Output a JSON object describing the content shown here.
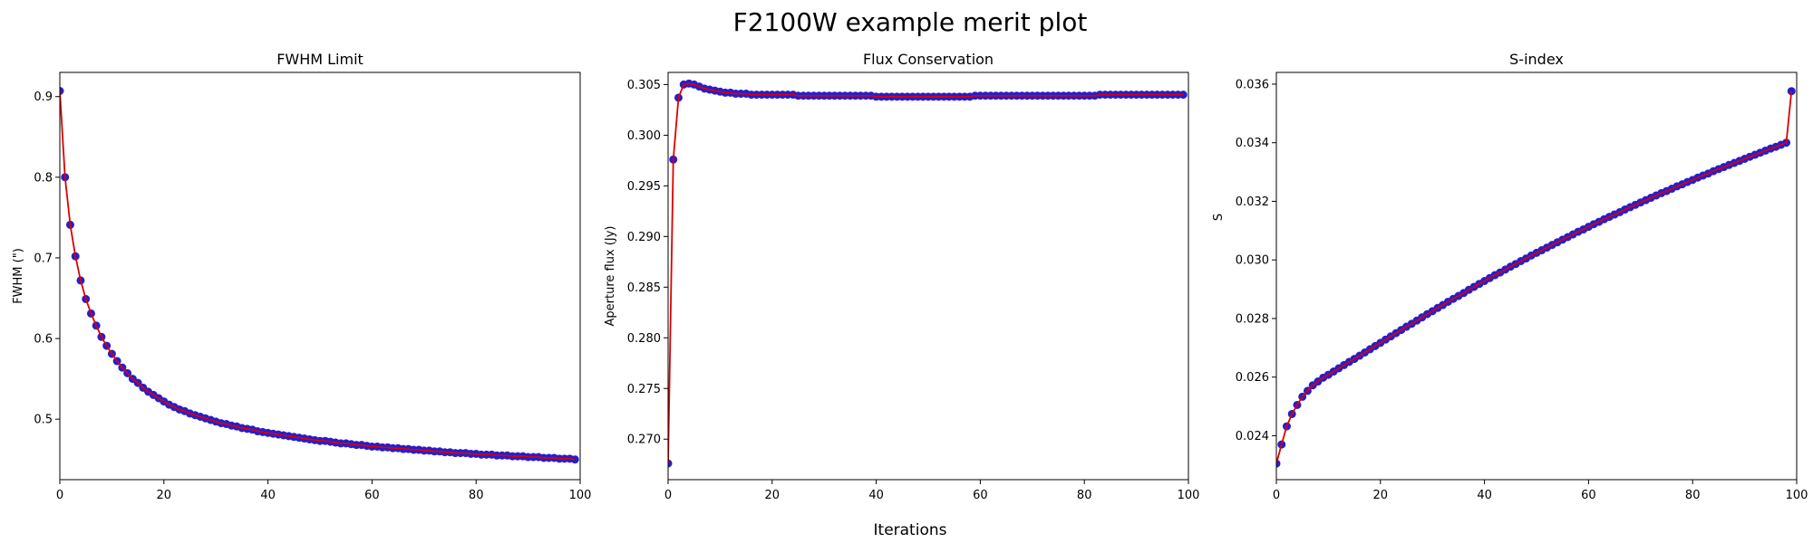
{
  "figure": {
    "suptitle": "F2100W example merit plot",
    "supxlabel": "Iterations"
  },
  "colors": {
    "line": "#dd0000",
    "marker": "#1f1fd6",
    "marker_edge": "#3a1fb0"
  },
  "chart_data": [
    {
      "type": "line",
      "title": "FWHM Limit",
      "xlabel": "",
      "ylabel": "FWHM (\")",
      "xlim": [
        0,
        100
      ],
      "ylim": [
        0.425,
        0.93
      ],
      "xticks": [
        0,
        20,
        40,
        60,
        80,
        100
      ],
      "yticks": [
        0.5,
        0.6,
        0.7,
        0.8,
        0.9
      ],
      "ytick_labels": [
        "0.5",
        "0.6",
        "0.7",
        "0.8",
        "0.9"
      ],
      "grid": false,
      "series": [
        {
          "x_start": 0,
          "x_step": 1,
          "values": [
            0.907,
            0.8,
            0.741,
            0.702,
            0.672,
            0.649,
            0.631,
            0.616,
            0.602,
            0.591,
            0.581,
            0.572,
            0.564,
            0.557,
            0.55,
            0.545,
            0.539,
            0.534,
            0.53,
            0.526,
            0.522,
            0.518,
            0.515,
            0.512,
            0.51,
            0.507,
            0.505,
            0.503,
            0.501,
            0.499,
            0.497,
            0.495,
            0.494,
            0.492,
            0.491,
            0.489,
            0.488,
            0.487,
            0.485,
            0.484,
            0.483,
            0.482,
            0.481,
            0.48,
            0.479,
            0.478,
            0.477,
            0.476,
            0.475,
            0.474,
            0.473,
            0.473,
            0.472,
            0.471,
            0.47,
            0.47,
            0.469,
            0.468,
            0.468,
            0.467,
            0.466,
            0.466,
            0.465,
            0.465,
            0.464,
            0.464,
            0.463,
            0.463,
            0.462,
            0.462,
            0.461,
            0.461,
            0.46,
            0.46,
            0.459,
            0.459,
            0.458,
            0.458,
            0.458,
            0.457,
            0.457,
            0.456,
            0.456,
            0.456,
            0.455,
            0.455,
            0.455,
            0.454,
            0.454,
            0.454,
            0.453,
            0.453,
            0.453,
            0.452,
            0.452,
            0.452,
            0.451,
            0.451,
            0.451,
            0.45
          ]
        }
      ]
    },
    {
      "type": "line",
      "title": "Flux Conservation",
      "xlabel": "",
      "ylabel": "Aperture flux (Jy)",
      "xlim": [
        0,
        100
      ],
      "ylim": [
        0.266,
        0.3062
      ],
      "xticks": [
        0,
        20,
        40,
        60,
        80,
        100
      ],
      "yticks": [
        0.27,
        0.275,
        0.28,
        0.285,
        0.29,
        0.295,
        0.3,
        0.305
      ],
      "ytick_labels": [
        "0.270",
        "0.275",
        "0.280",
        "0.285",
        "0.290",
        "0.295",
        "0.300",
        "0.305"
      ],
      "grid": false,
      "series": [
        {
          "x_start": 0,
          "x_step": 1,
          "values": [
            0.2676,
            0.2976,
            0.3037,
            0.305,
            0.3051,
            0.305,
            0.3048,
            0.3046,
            0.3045,
            0.3044,
            0.3043,
            0.3042,
            0.3042,
            0.3041,
            0.3041,
            0.3041,
            0.304,
            0.304,
            0.304,
            0.304,
            0.304,
            0.304,
            0.304,
            0.304,
            0.304,
            0.3039,
            0.3039,
            0.3039,
            0.3039,
            0.3039,
            0.3039,
            0.3039,
            0.3039,
            0.3039,
            0.3039,
            0.3039,
            0.3039,
            0.3039,
            0.3039,
            0.3039,
            0.3038,
            0.3038,
            0.3038,
            0.3038,
            0.3038,
            0.3038,
            0.3038,
            0.3038,
            0.3038,
            0.3038,
            0.3038,
            0.3038,
            0.3038,
            0.3038,
            0.3038,
            0.3038,
            0.3038,
            0.3038,
            0.3038,
            0.3039,
            0.3039,
            0.3039,
            0.3039,
            0.3039,
            0.3039,
            0.3039,
            0.3039,
            0.3039,
            0.3039,
            0.3039,
            0.3039,
            0.3039,
            0.3039,
            0.3039,
            0.3039,
            0.3039,
            0.3039,
            0.3039,
            0.3039,
            0.3039,
            0.3039,
            0.3039,
            0.3039,
            0.304,
            0.304,
            0.304,
            0.304,
            0.304,
            0.304,
            0.304,
            0.304,
            0.304,
            0.304,
            0.304,
            0.304,
            0.304,
            0.304,
            0.304,
            0.304,
            0.304
          ]
        }
      ]
    },
    {
      "type": "line",
      "title": "S-index",
      "xlabel": "",
      "ylabel": "S",
      "xlim": [
        0,
        100
      ],
      "ylim": [
        0.0225,
        0.0364
      ],
      "xticks": [
        0,
        20,
        40,
        60,
        80,
        100
      ],
      "yticks": [
        0.024,
        0.026,
        0.028,
        0.03,
        0.032,
        0.034,
        0.036
      ],
      "ytick_labels": [
        "0.024",
        "0.026",
        "0.028",
        "0.030",
        "0.032",
        "0.034",
        "0.036"
      ],
      "grid": false,
      "series": [
        {
          "x_start": 0,
          "x_step": 1,
          "values": [
            0.02305,
            0.0237,
            0.02432,
            0.02474,
            0.02505,
            0.02533,
            0.02553,
            0.02572,
            0.02585,
            0.02598,
            0.02608,
            0.02619,
            0.0263,
            0.02641,
            0.02652,
            0.02662,
            0.02673,
            0.02684,
            0.02695,
            0.02706,
            0.02717,
            0.02728,
            0.02739,
            0.0275,
            0.02761,
            0.02772,
            0.02782,
            0.02793,
            0.02804,
            0.02815,
            0.02825,
            0.02836,
            0.02846,
            0.02857,
            0.02867,
            0.02877,
            0.02887,
            0.02898,
            0.02908,
            0.02918,
            0.02928,
            0.02938,
            0.02948,
            0.02957,
            0.02967,
            0.02977,
            0.02986,
            0.02996,
            0.03005,
            0.03015,
            0.03024,
            0.03033,
            0.03042,
            0.03051,
            0.0306,
            0.03069,
            0.03078,
            0.03087,
            0.03096,
            0.03104,
            0.03113,
            0.03122,
            0.0313,
            0.03139,
            0.03147,
            0.03155,
            0.03163,
            0.03172,
            0.0318,
            0.03188,
            0.03196,
            0.03204,
            0.03212,
            0.0322,
            0.03228,
            0.03235,
            0.03243,
            0.03251,
            0.03258,
            0.03266,
            0.03273,
            0.03281,
            0.03288,
            0.03295,
            0.03303,
            0.0331,
            0.03317,
            0.03324,
            0.03331,
            0.03338,
            0.03345,
            0.03352,
            0.03359,
            0.03366,
            0.03373,
            0.0338,
            0.03386,
            0.03393,
            0.034,
            0.03576
          ]
        }
      ]
    }
  ]
}
